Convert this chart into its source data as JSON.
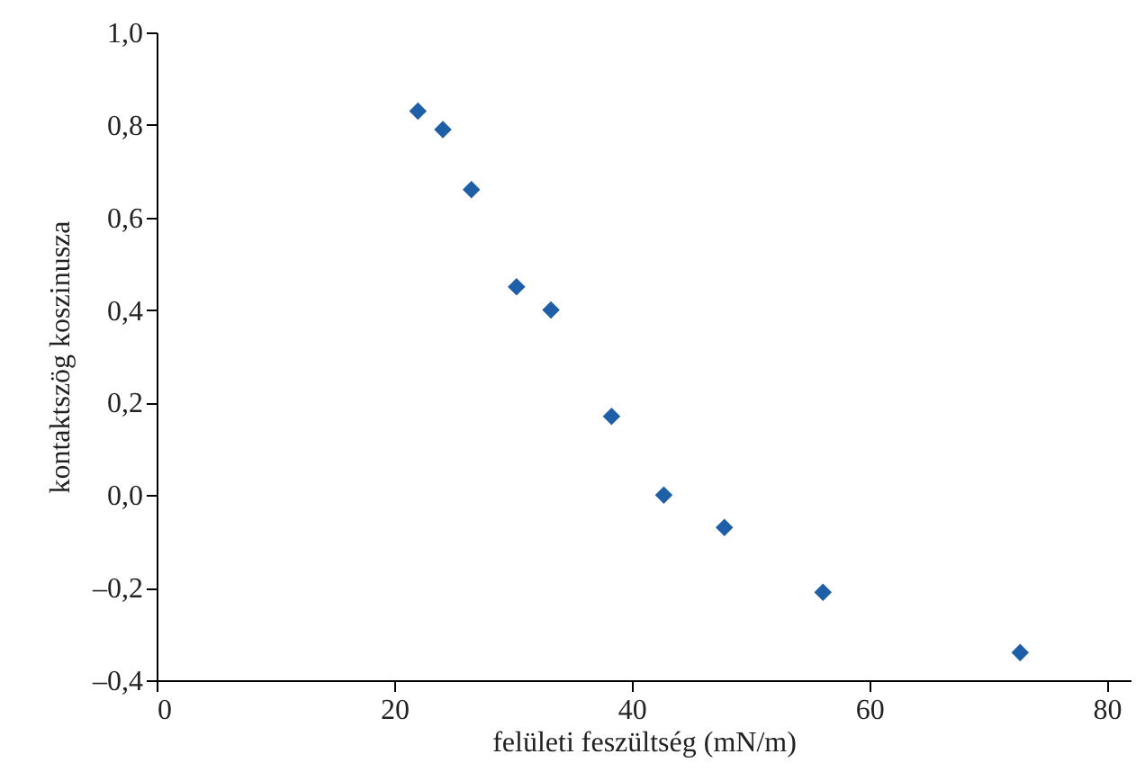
{
  "chart_data": {
    "type": "scatter",
    "xlabel": "felületi feszültség (mN/m)",
    "ylabel": "kontaktszög koszinusza",
    "x": [
      22.0,
      24.1,
      26.5,
      30.3,
      33.2,
      38.3,
      42.7,
      47.8,
      56.1,
      72.7
    ],
    "series": [
      {
        "color": "#1f5fa8",
        "values": [
          0.83,
          0.79,
          0.66,
          0.45,
          0.4,
          0.17,
          0.0,
          -0.07,
          -0.21,
          -0.34
        ]
      }
    ],
    "xlim": [
      0,
      82
    ],
    "xticks": [
      0,
      20,
      40,
      60,
      80
    ],
    "ylim": [
      -0.4,
      1.0
    ],
    "yticks": [
      {
        "value": -0.4,
        "label": "–0,4"
      },
      {
        "value": -0.2,
        "label": "–0,2"
      },
      {
        "value": 0,
        "label": "0,0"
      },
      {
        "value": 0.2,
        "label": "0,2"
      },
      {
        "value": 0.4,
        "label": "0,4"
      },
      {
        "value": 0.6,
        "label": "0,6"
      },
      {
        "value": 0.8,
        "label": "0,8"
      },
      {
        "value": 1.0,
        "label": "1,0"
      }
    ],
    "grid": false,
    "marker": "diamond"
  }
}
